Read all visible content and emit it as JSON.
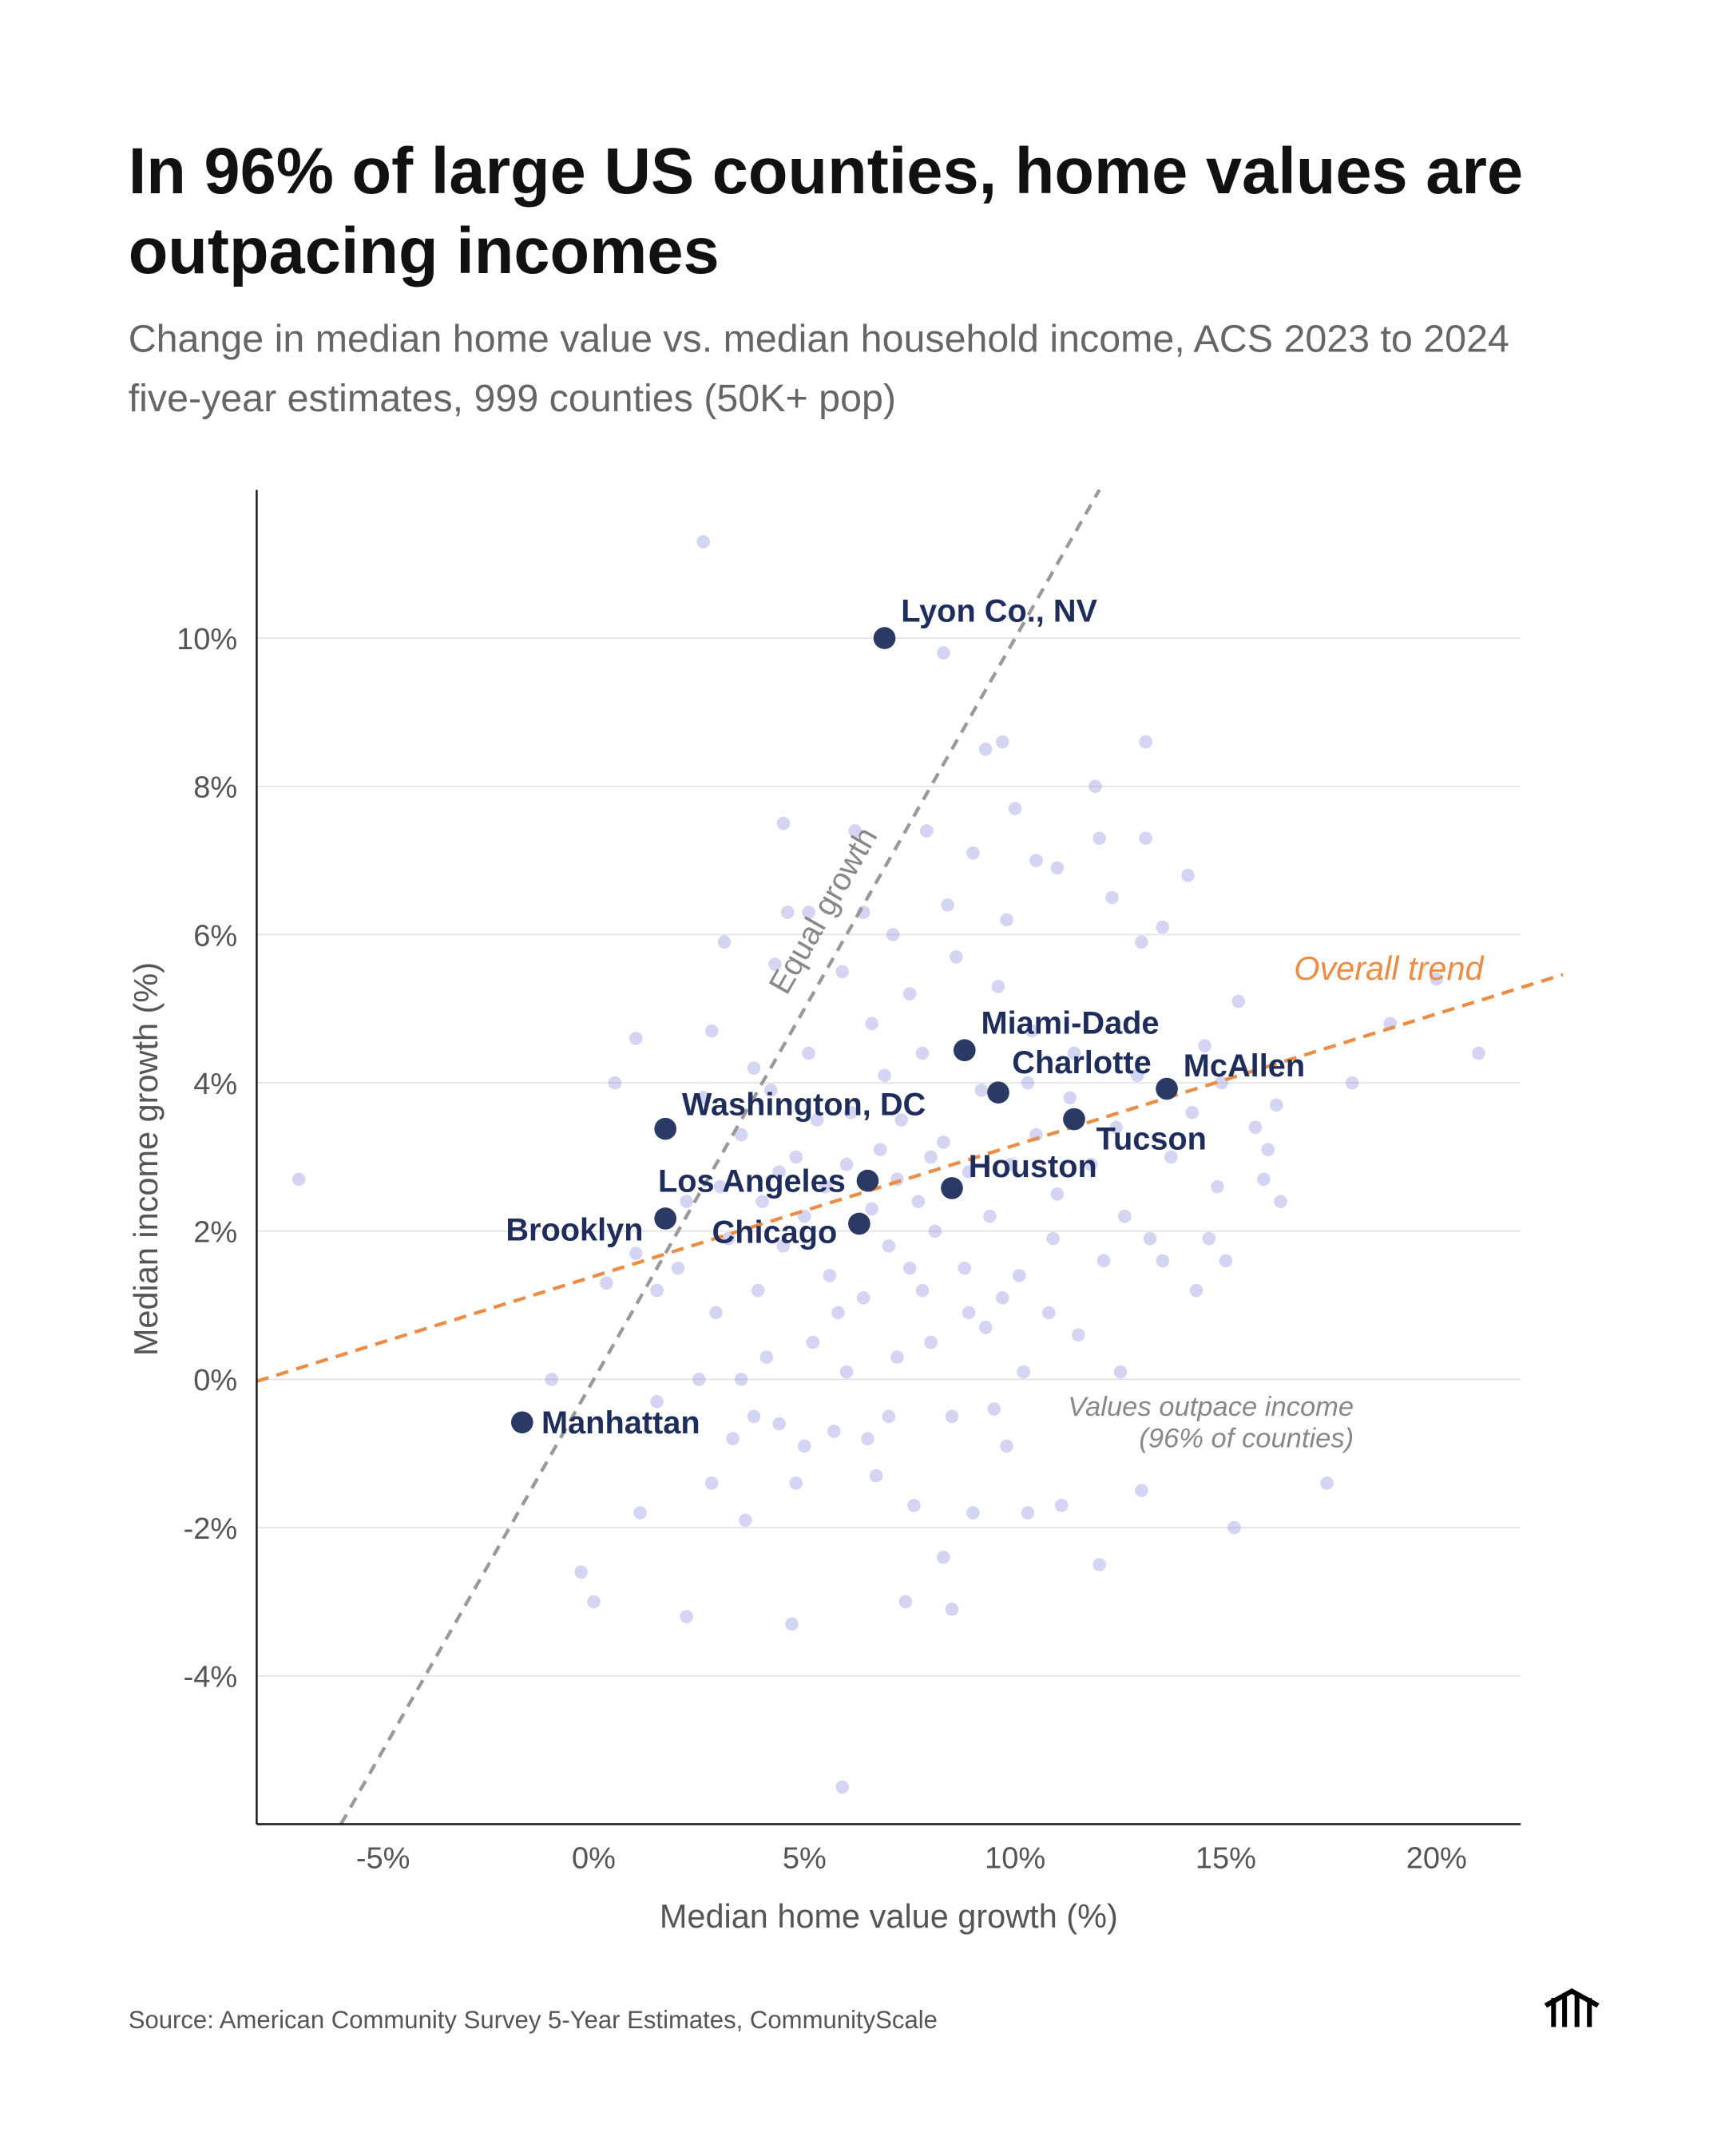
{
  "title_lines": [
    "In 96% of large US counties, home values are",
    "outpacing incomes"
  ],
  "subtitle_lines": [
    "Change in median home value vs. median household income, ACS 2023 to 2024",
    "five-year estimates, 999 counties (50K+ pop)"
  ],
  "source": "Source: American Community Survey 5-Year Estimates, CommunityScale",
  "logo": "building-columns-icon",
  "colors": {
    "highlight": "#2b3a64",
    "highlight_label": "#1f2d5c",
    "scatter": "#8e8fe0",
    "trend": "#ec8c45",
    "equal_line": "#999999",
    "grid": "#e3e3e3"
  },
  "chart_data": {
    "type": "scatter",
    "xlabel": "Median home value growth (%)",
    "ylabel": "Median income growth (%)",
    "xlim": [
      -8,
      22
    ],
    "ylim": [
      -6,
      12
    ],
    "x_ticks": [
      {
        "v": -5,
        "label": "-5%"
      },
      {
        "v": 0,
        "label": "0%"
      },
      {
        "v": 5,
        "label": "5%"
      },
      {
        "v": 10,
        "label": "10%"
      },
      {
        "v": 15,
        "label": "15%"
      },
      {
        "v": 20,
        "label": "20%"
      }
    ],
    "y_ticks": [
      {
        "v": -4,
        "label": "-4%"
      },
      {
        "v": -2,
        "label": "-2%"
      },
      {
        "v": 0,
        "label": "0%"
      },
      {
        "v": 2,
        "label": "2%"
      },
      {
        "v": 4,
        "label": "4%"
      },
      {
        "v": 6,
        "label": "6%"
      },
      {
        "v": 8,
        "label": "8%"
      },
      {
        "v": 10,
        "label": "10%"
      }
    ],
    "grid": "horizontal",
    "highlighted": [
      {
        "name": "Lyon Co., NV",
        "x": 6.9,
        "y": 10.0
      },
      {
        "name": "Miami-Dade",
        "x": 8.8,
        "y": 4.44
      },
      {
        "name": "McAllen",
        "x": 13.6,
        "y": 3.92
      },
      {
        "name": "Charlotte",
        "x": 9.6,
        "y": 3.87
      },
      {
        "name": "Tucson",
        "x": 11.4,
        "y": 3.51
      },
      {
        "name": "Houston",
        "x": 8.5,
        "y": 2.58
      },
      {
        "name": "Los Angeles",
        "x": 6.5,
        "y": 2.68
      },
      {
        "name": "Chicago",
        "x": 6.3,
        "y": 2.1
      },
      {
        "name": "Washington, DC",
        "x": 1.7,
        "y": 3.38
      },
      {
        "name": "Brooklyn",
        "x": 1.7,
        "y": 2.17
      },
      {
        "name": "Manhattan",
        "x": -1.7,
        "y": -0.58
      }
    ],
    "reference_lines": [
      {
        "label": "Equal growth",
        "slope": 1,
        "intercept": 0
      },
      {
        "label": "Overall trend",
        "slope": 0.177,
        "intercept": 1.39
      }
    ],
    "annotation": [
      "Values outpace income",
      "(96% of counties)"
    ],
    "counties": [
      [
        2.6,
        11.3
      ],
      [
        8.3,
        9.8
      ],
      [
        -7.0,
        2.7
      ],
      [
        1.0,
        4.6
      ],
      [
        5.9,
        -5.5
      ],
      [
        21.0,
        4.4
      ],
      [
        20.0,
        5.4
      ],
      [
        18.9,
        4.8
      ],
      [
        18.0,
        4.0
      ],
      [
        17.4,
        -1.4
      ],
      [
        15.2,
        -2.0
      ],
      [
        14.3,
        1.2
      ],
      [
        13.1,
        8.6
      ],
      [
        12.0,
        -2.5
      ],
      [
        -0.3,
        -2.6
      ],
      [
        0.0,
        -3.0
      ],
      [
        2.2,
        -3.2
      ],
      [
        4.7,
        -3.3
      ],
      [
        7.4,
        -3.0
      ],
      [
        8.5,
        -3.1
      ],
      [
        8.3,
        -2.4
      ],
      [
        4.5,
        7.5
      ],
      [
        9.7,
        8.6
      ],
      [
        9.3,
        8.5
      ],
      [
        11.9,
        8.0
      ],
      [
        14.1,
        6.8
      ],
      [
        -1.0,
        0.0
      ],
      [
        1.1,
        -1.8
      ],
      [
        3.6,
        -1.9
      ],
      [
        11.1,
        -1.7
      ],
      [
        13.0,
        -1.5
      ],
      [
        10.3,
        -1.8
      ],
      [
        9.0,
        -1.8
      ],
      [
        7.6,
        -1.7
      ],
      [
        3.1,
        5.9
      ],
      [
        4.6,
        6.3
      ],
      [
        6.2,
        7.4
      ],
      [
        7.9,
        7.4
      ],
      [
        9.0,
        7.1
      ],
      [
        10.0,
        7.7
      ],
      [
        10.5,
        7.0
      ],
      [
        11.0,
        6.9
      ],
      [
        12.0,
        7.3
      ],
      [
        13.1,
        7.3
      ],
      [
        12.3,
        6.5
      ],
      [
        13.0,
        5.9
      ],
      [
        13.5,
        6.1
      ],
      [
        15.3,
        5.1
      ],
      [
        14.5,
        4.5
      ],
      [
        16.2,
        3.7
      ],
      [
        15.7,
        3.4
      ],
      [
        16.0,
        3.1
      ],
      [
        16.3,
        2.4
      ],
      [
        15.9,
        2.7
      ],
      [
        14.8,
        2.6
      ],
      [
        14.6,
        1.9
      ],
      [
        15.0,
        1.6
      ],
      [
        13.5,
        1.6
      ],
      [
        13.2,
        1.9
      ],
      [
        12.6,
        2.2
      ],
      [
        12.5,
        0.1
      ],
      [
        11.5,
        0.6
      ],
      [
        10.2,
        0.1
      ],
      [
        9.5,
        -0.4
      ],
      [
        9.8,
        -0.9
      ],
      [
        8.5,
        -0.5
      ],
      [
        7.0,
        -0.5
      ],
      [
        6.5,
        -0.8
      ],
      [
        5.7,
        -0.7
      ],
      [
        5.0,
        -0.9
      ],
      [
        4.4,
        -0.6
      ],
      [
        3.8,
        -0.5
      ],
      [
        3.3,
        -0.8
      ],
      [
        2.8,
        -1.4
      ],
      [
        4.8,
        -1.4
      ],
      [
        6.7,
        -1.3
      ],
      [
        6.0,
        0.1
      ],
      [
        7.2,
        0.3
      ],
      [
        8.0,
        0.5
      ],
      [
        9.3,
        0.7
      ],
      [
        5.2,
        0.5
      ],
      [
        4.1,
        0.3
      ],
      [
        3.5,
        0.0
      ],
      [
        2.5,
        0.0
      ],
      [
        1.5,
        -0.3
      ],
      [
        0.3,
        1.3
      ],
      [
        1.0,
        1.7
      ],
      [
        2.0,
        1.5
      ],
      [
        2.9,
        0.9
      ],
      [
        3.9,
        1.2
      ],
      [
        4.5,
        1.8
      ],
      [
        5.0,
        2.2
      ],
      [
        5.5,
        2.6
      ],
      [
        6.0,
        2.9
      ],
      [
        6.8,
        3.1
      ],
      [
        7.3,
        3.5
      ],
      [
        7.7,
        2.4
      ],
      [
        8.1,
        2.0
      ],
      [
        8.8,
        1.5
      ],
      [
        9.4,
        2.2
      ],
      [
        9.9,
        2.9
      ],
      [
        10.5,
        3.3
      ],
      [
        11.0,
        2.5
      ],
      [
        11.8,
        2.9
      ],
      [
        12.4,
        3.4
      ],
      [
        12.9,
        4.1
      ],
      [
        11.4,
        4.4
      ],
      [
        10.4,
        4.7
      ],
      [
        9.6,
        5.3
      ],
      [
        8.6,
        5.7
      ],
      [
        7.5,
        5.2
      ],
      [
        6.6,
        4.8
      ],
      [
        5.9,
        5.5
      ],
      [
        5.1,
        4.4
      ],
      [
        4.2,
        3.9
      ],
      [
        3.5,
        3.3
      ],
      [
        3.0,
        2.6
      ],
      [
        2.6,
        3.8
      ],
      [
        4.0,
        2.4
      ],
      [
        4.8,
        3.0
      ],
      [
        5.6,
        1.4
      ],
      [
        6.4,
        1.1
      ],
      [
        7.0,
        1.8
      ],
      [
        7.8,
        1.2
      ],
      [
        8.9,
        0.9
      ],
      [
        10.1,
        1.4
      ],
      [
        10.9,
        1.9
      ],
      [
        6.1,
        3.6
      ],
      [
        6.9,
        4.1
      ],
      [
        7.8,
        4.4
      ],
      [
        8.3,
        3.2
      ],
      [
        8.9,
        2.8
      ],
      [
        9.2,
        3.9
      ],
      [
        10.3,
        4.0
      ],
      [
        11.3,
        3.8
      ],
      [
        12.1,
        1.6
      ],
      [
        13.7,
        3.0
      ],
      [
        14.2,
        3.6
      ],
      [
        14.9,
        4.0
      ],
      [
        7.2,
        2.7
      ],
      [
        6.6,
        2.3
      ],
      [
        7.5,
        1.5
      ],
      [
        8.0,
        3.0
      ],
      [
        5.3,
        3.5
      ],
      [
        4.4,
        2.8
      ],
      [
        3.2,
        1.9
      ],
      [
        5.8,
        0.9
      ],
      [
        9.7,
        1.1
      ],
      [
        10.8,
        0.9
      ],
      [
        7.1,
        6.0
      ],
      [
        8.4,
        6.4
      ],
      [
        9.8,
        6.2
      ],
      [
        6.4,
        6.3
      ],
      [
        5.1,
        6.3
      ],
      [
        4.3,
        5.6
      ],
      [
        2.2,
        2.4
      ],
      [
        1.5,
        1.2
      ],
      [
        0.5,
        4.0
      ],
      [
        2.8,
        4.7
      ],
      [
        3.8,
        4.2
      ]
    ]
  }
}
